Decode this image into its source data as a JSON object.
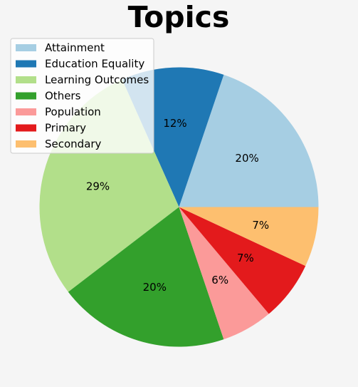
{
  "chart_data": {
    "type": "pie",
    "title": "Topics",
    "categories": [
      "Attainment",
      "Education Equality",
      "Learning Outcomes",
      "Others",
      "Population",
      "Primary",
      "Secondary"
    ],
    "values": [
      20,
      12,
      29,
      20,
      6,
      7,
      7
    ],
    "labels": [
      "20%",
      "12%",
      "29%",
      "20%",
      "6%",
      "7%",
      "7%"
    ],
    "colors": [
      "#a6cee3",
      "#1f78b4",
      "#b2df8a",
      "#33a02c",
      "#fb9a99",
      "#e31a1c",
      "#fdbf6f"
    ],
    "start_angle_deg": 0,
    "direction": "counterclockwise",
    "legend_position": "top-left"
  }
}
